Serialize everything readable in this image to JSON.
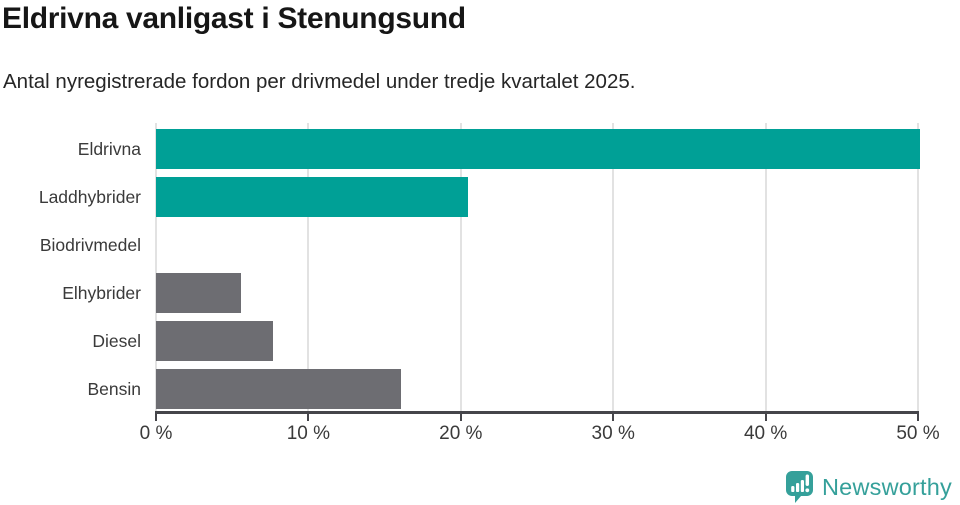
{
  "chart_data": {
    "type": "bar",
    "orientation": "horizontal",
    "title": "Eldrivna vanligast i Stenungsund",
    "subtitle": "Antal nyregistrerade fordon per drivmedel under tredje kvartalet 2025.",
    "categories": [
      "Eldrivna",
      "Laddhybrider",
      "Biodrivmedel",
      "Elhybrider",
      "Diesel",
      "Bensin"
    ],
    "values": [
      50.1,
      20.5,
      0,
      5.6,
      7.7,
      16.1
    ],
    "value_unit": "%",
    "bar_colors": [
      "#00a096",
      "#00a096",
      "#6d6d72",
      "#6d6d72",
      "#6d6d72",
      "#6d6d72"
    ],
    "xlim": [
      0,
      50
    ],
    "x_ticks": [
      0,
      10,
      20,
      30,
      40,
      50
    ],
    "x_tick_labels": [
      "0 %",
      "10 %",
      "20 %",
      "30 %",
      "40 %",
      "50 %"
    ],
    "grid": true,
    "legend": false
  },
  "branding": {
    "logo_text": "Newsworthy",
    "logo_color": "#35a09a",
    "logo_icon": "newsworthy-speech-bubble-barchart-icon"
  },
  "colors": {
    "accent_teal": "#00a096",
    "muted_bar_gray": "#6d6d72",
    "gridline": "#e2e2e2",
    "axis": "#45454a",
    "title_text": "#161616",
    "label_text": "#3a3a3a"
  }
}
